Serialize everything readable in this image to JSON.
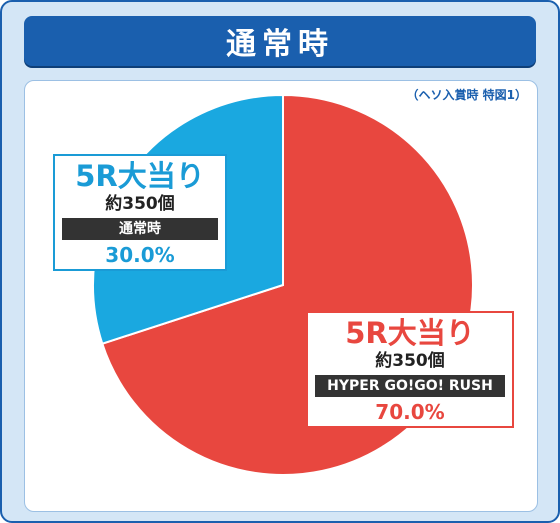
{
  "header": {
    "title": "通常時"
  },
  "note": "（ヘソ入賞時 特図1）",
  "chart_data": {
    "type": "pie",
    "title": "",
    "slices": [
      {
        "name": "5R大当り",
        "count": "約350個",
        "tag": "HYPER GO!GO! RUSH",
        "value": 70.0,
        "label": "70.0%",
        "color": "#e8473f"
      },
      {
        "name": "5R大当り",
        "count": "約350個",
        "tag": "通常時",
        "value": 30.0,
        "label": "30.0%",
        "color": "#1aa8e0"
      }
    ]
  }
}
